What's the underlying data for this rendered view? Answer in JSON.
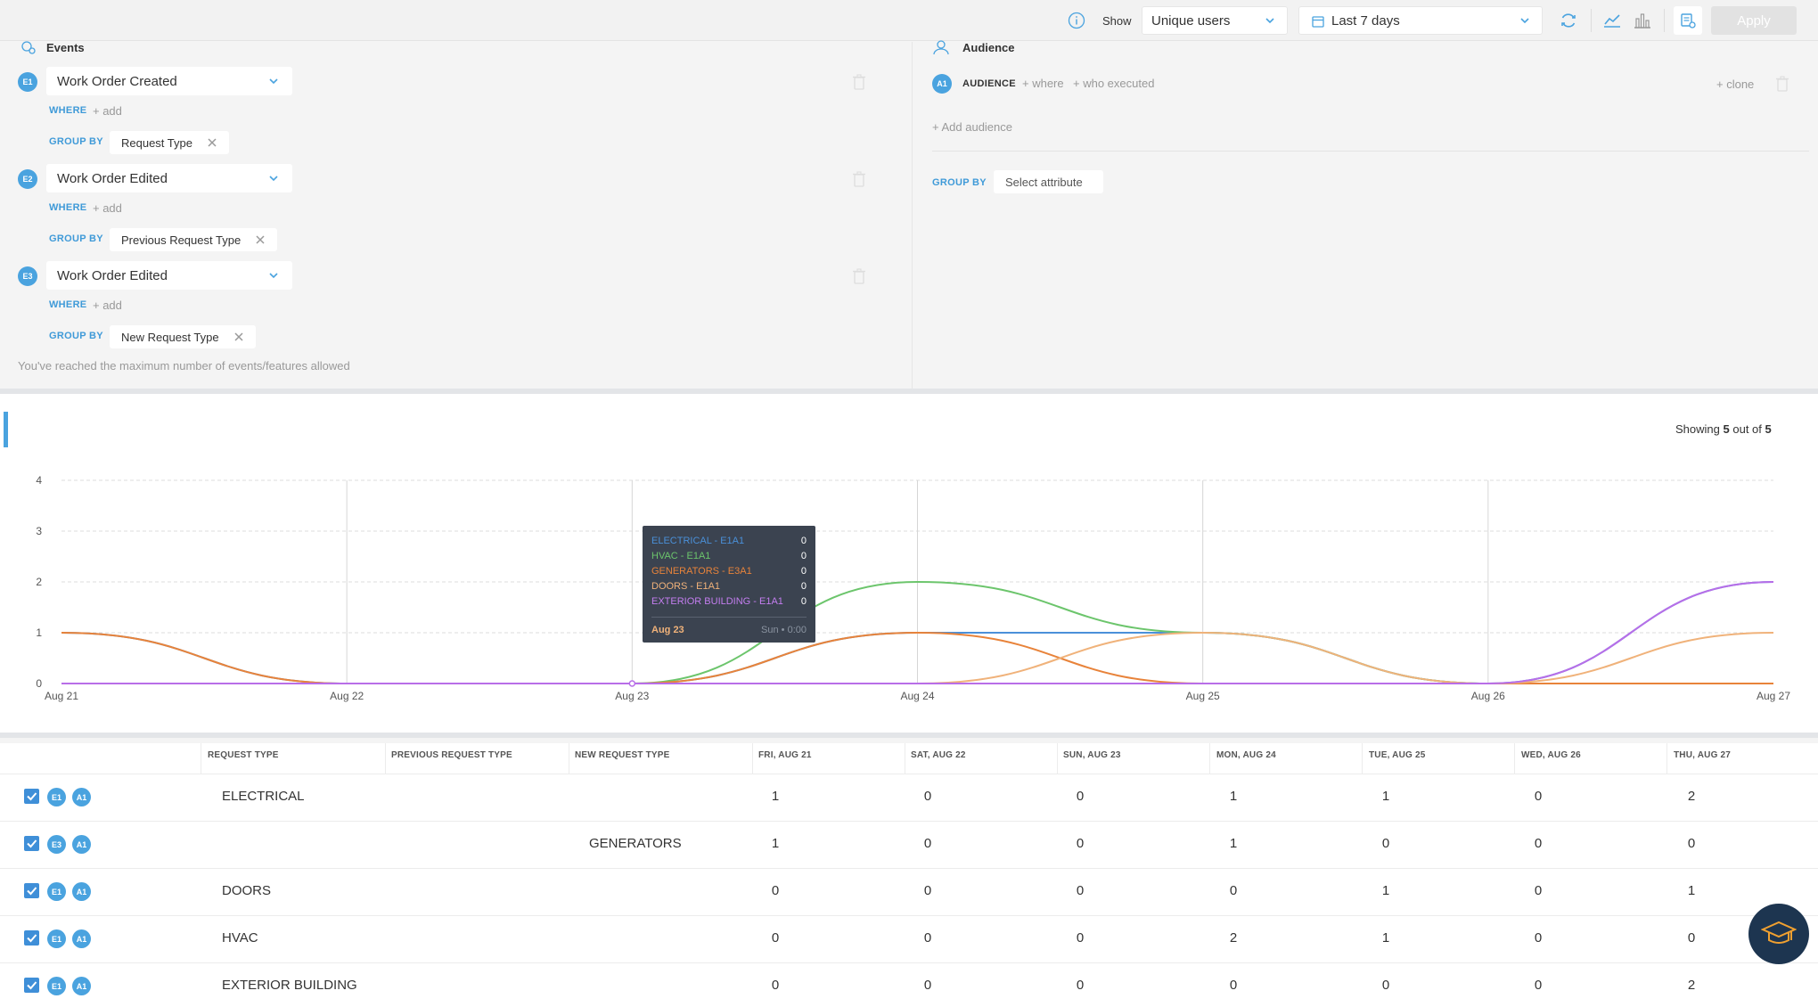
{
  "topbar": {
    "show_label": "Show",
    "metric_value": "Unique users",
    "date_range": "Last 7 days",
    "apply_label": "Apply"
  },
  "events": {
    "title": "Events",
    "items": [
      {
        "badge": "E1",
        "name": "Work Order Created",
        "where_label": "WHERE",
        "where_add": "+ add",
        "group_label": "GROUP BY",
        "group_value": "Request Type"
      },
      {
        "badge": "E2",
        "name": "Work Order Edited",
        "where_label": "WHERE",
        "where_add": "+ add",
        "group_label": "GROUP BY",
        "group_value": "Previous Request Type"
      },
      {
        "badge": "E3",
        "name": "Work Order Edited",
        "where_label": "WHERE",
        "where_add": "+ add",
        "group_label": "GROUP BY",
        "group_value": "New Request Type"
      }
    ],
    "limit_note": "You've reached the maximum number of events/features allowed"
  },
  "audience": {
    "title": "Audience",
    "badge": "A1",
    "label": "AUDIENCE",
    "where": "+ where",
    "who_executed": "+ who executed",
    "clone": "+ clone",
    "add_audience": "+ Add audience",
    "group_label": "GROUP BY",
    "group_placeholder": "Select attribute"
  },
  "showing": {
    "prefix": "Showing",
    "count": "5",
    "middle": "out of",
    "total": "5"
  },
  "chart_data": {
    "type": "line",
    "x": [
      "Aug 21",
      "Aug 22",
      "Aug 23",
      "Aug 24",
      "Aug 25",
      "Aug 26",
      "Aug 27"
    ],
    "yticks": [
      0,
      1,
      2,
      3,
      4
    ],
    "ylim": [
      0,
      4
    ],
    "series": [
      {
        "name": "ELECTRICAL - E1A1",
        "color": "#4a90d9",
        "values": [
          1,
          0,
          0,
          1,
          1,
          0,
          2
        ]
      },
      {
        "name": "HVAC - E1A1",
        "color": "#6cc56c",
        "values": [
          0,
          0,
          0,
          2,
          1,
          0,
          0
        ]
      },
      {
        "name": "GENERATORS - E3A1",
        "color": "#e8833a",
        "values": [
          1,
          0,
          0,
          1,
          0,
          0,
          0
        ]
      },
      {
        "name": "DOORS - E1A1",
        "color": "#f0b27a",
        "values": [
          0,
          0,
          0,
          0,
          1,
          0,
          1
        ]
      },
      {
        "name": "EXTERIOR BUILDING - E1A1",
        "color": "#b86ee8",
        "values": [
          0,
          0,
          0,
          0,
          0,
          0,
          2
        ]
      }
    ]
  },
  "tooltip": {
    "rows": [
      {
        "label": "ELECTRICAL - E1A1",
        "value": "0",
        "color": "#4a90d9"
      },
      {
        "label": "HVAC - E1A1",
        "value": "0",
        "color": "#6cc56c"
      },
      {
        "label": "GENERATORS - E3A1",
        "value": "0",
        "color": "#e8833a"
      },
      {
        "label": "DOORS - E1A1",
        "value": "0",
        "color": "#f0b27a"
      },
      {
        "label": "EXTERIOR BUILDING - E1A1",
        "value": "0",
        "color": "#c47ef0"
      }
    ],
    "date": "Aug 23",
    "day": "Sun",
    "time": "0:00"
  },
  "table": {
    "headers": [
      "REQUEST TYPE",
      "PREVIOUS REQUEST TYPE",
      "NEW REQUEST TYPE",
      "FRI, AUG 21",
      "SAT, AUG 22",
      "SUN, AUG 23",
      "MON, AUG 24",
      "TUE, AUG 25",
      "WED, AUG 26",
      "THU, AUG 27"
    ],
    "rows": [
      {
        "badge": "E1",
        "audience": "A1",
        "request_type": "ELECTRICAL",
        "new_request_type": "",
        "values": [
          "1",
          "0",
          "0",
          "1",
          "1",
          "0",
          "2"
        ]
      },
      {
        "badge": "E3",
        "audience": "A1",
        "request_type": "",
        "new_request_type": "GENERATORS",
        "values": [
          "1",
          "0",
          "0",
          "1",
          "0",
          "0",
          "0"
        ]
      },
      {
        "badge": "E1",
        "audience": "A1",
        "request_type": "DOORS",
        "new_request_type": "",
        "values": [
          "0",
          "0",
          "0",
          "0",
          "1",
          "0",
          "1"
        ]
      },
      {
        "badge": "E1",
        "audience": "A1",
        "request_type": "HVAC",
        "new_request_type": "",
        "values": [
          "0",
          "0",
          "0",
          "2",
          "1",
          "0",
          "0"
        ]
      },
      {
        "badge": "E1",
        "audience": "A1",
        "request_type": "EXTERIOR BUILDING",
        "new_request_type": "",
        "values": [
          "0",
          "0",
          "0",
          "0",
          "0",
          "0",
          "2"
        ]
      }
    ]
  }
}
